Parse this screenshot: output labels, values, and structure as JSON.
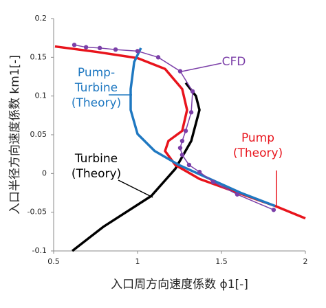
{
  "chart_data": {
    "type": "line",
    "xlabel": "入口周方向速度係数 ϕ1[-]",
    "ylabel": "入口半径方向速度係数 km1[-]",
    "xlim": [
      0.5,
      2
    ],
    "xticks": [
      0.5,
      1,
      1.5,
      2
    ],
    "ylim": [
      -0.1,
      0.2
    ],
    "yticks": [
      -0.1,
      -0.05,
      0,
      0.05,
      0.1,
      0.15,
      0.2
    ],
    "series": [
      {
        "name": "Turbine\n(Theory)",
        "color": "#000000",
        "markers": false,
        "x": [
          0.611,
          0.795,
          1.082,
          1.225,
          1.32,
          1.369,
          1.348,
          1.287
        ],
        "values": [
          -0.1,
          -0.069,
          -0.029,
          0.006,
          0.042,
          0.082,
          0.1,
          0.117
        ]
      },
      {
        "name": "Pump\n(Theory)",
        "color": "#e8141c",
        "markers": false,
        "x": [
          0.508,
          0.754,
          1.0,
          1.164,
          1.266,
          1.295,
          1.266,
          1.184,
          1.164,
          1.225,
          1.369,
          1.574,
          1.82,
          2.0
        ],
        "values": [
          0.164,
          0.157,
          0.149,
          0.135,
          0.109,
          0.082,
          0.055,
          0.042,
          0.029,
          0.011,
          -0.007,
          -0.023,
          -0.042,
          -0.058
        ]
      },
      {
        "name": "Pump-\nTurbine\n(Theory)",
        "color": "#1f78c1",
        "markers": false,
        "x": [
          1.02,
          0.98,
          0.959,
          0.959,
          1.0,
          1.102,
          1.246,
          1.41,
          1.615,
          1.82
        ],
        "values": [
          0.162,
          0.144,
          0.109,
          0.082,
          0.051,
          0.029,
          0.011,
          -0.005,
          -0.025,
          -0.042
        ]
      },
      {
        "name": "CFD",
        "color": "#7b3fa8",
        "markers": true,
        "x": [
          0.623,
          0.693,
          0.775,
          0.869,
          1.0,
          1.123,
          1.254,
          1.328,
          1.32,
          1.287,
          1.266,
          1.254,
          1.266,
          1.307,
          1.369,
          1.451,
          1.594,
          1.811
        ],
        "values": [
          0.166,
          0.163,
          0.162,
          0.16,
          0.158,
          0.15,
          0.132,
          0.106,
          0.079,
          0.055,
          0.042,
          0.033,
          0.024,
          0.011,
          0.002,
          -0.011,
          -0.027,
          -0.047
        ]
      }
    ]
  }
}
